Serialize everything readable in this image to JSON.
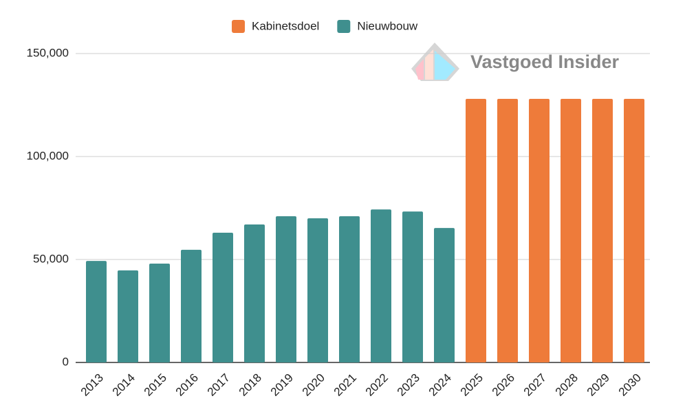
{
  "chart_data": {
    "type": "bar",
    "watermark": "Vastgoed Insider",
    "categories": [
      "2013",
      "2014",
      "2015",
      "2016",
      "2017",
      "2018",
      "2019",
      "2020",
      "2021",
      "2022",
      "2023",
      "2024",
      "2025",
      "2026",
      "2027",
      "2028",
      "2029",
      "2030"
    ],
    "series": [
      {
        "name": "Kabinetsdoel",
        "color": "#ee7b3a",
        "values": [
          null,
          null,
          null,
          null,
          null,
          null,
          null,
          null,
          null,
          null,
          null,
          null,
          128000,
          128000,
          128000,
          128000,
          128000,
          128000
        ]
      },
      {
        "name": "Nieuwbouw",
        "color": "#3f8f8e",
        "values": [
          49300,
          44700,
          48000,
          54700,
          63000,
          67000,
          71000,
          70000,
          71000,
          74300,
          73300,
          65300,
          null,
          null,
          null,
          null,
          null,
          null
        ]
      }
    ],
    "ylim": [
      0,
      150000
    ],
    "yticks": [
      0,
      {
        "value": 50000,
        "label": "50,000"
      },
      {
        "value": 100000,
        "label": "100,000"
      },
      {
        "value": 150000,
        "label": "150,000"
      }
    ],
    "grid": true,
    "legend": "top"
  }
}
